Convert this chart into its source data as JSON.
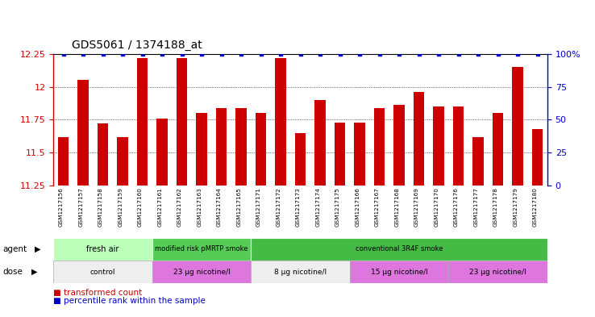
{
  "title": "GDS5061 / 1374188_at",
  "samples": [
    "GSM1217156",
    "GSM1217157",
    "GSM1217158",
    "GSM1217159",
    "GSM1217160",
    "GSM1217161",
    "GSM1217162",
    "GSM1217163",
    "GSM1217164",
    "GSM1217165",
    "GSM1217171",
    "GSM1217172",
    "GSM1217173",
    "GSM1217174",
    "GSM1217175",
    "GSM1217166",
    "GSM1217167",
    "GSM1217168",
    "GSM1217169",
    "GSM1217170",
    "GSM1217176",
    "GSM1217177",
    "GSM1217178",
    "GSM1217179",
    "GSM1217180"
  ],
  "bar_values": [
    11.62,
    12.05,
    11.72,
    11.62,
    12.22,
    11.76,
    12.22,
    11.8,
    11.84,
    11.84,
    11.8,
    12.22,
    11.65,
    11.9,
    11.73,
    11.73,
    11.84,
    11.86,
    11.96,
    11.85,
    11.85,
    11.62,
    11.8,
    12.15,
    11.68
  ],
  "percentile_values": [
    100,
    100,
    100,
    100,
    100,
    100,
    100,
    100,
    100,
    100,
    100,
    100,
    100,
    100,
    100,
    100,
    100,
    100,
    100,
    100,
    100,
    100,
    100,
    100,
    100
  ],
  "bar_color": "#cc0000",
  "percentile_color": "#0000cc",
  "ymin": 11.25,
  "ymax": 12.25,
  "yticks": [
    11.25,
    11.5,
    11.75,
    12.0,
    12.25
  ],
  "ytick_labels": [
    "11.25",
    "11.5",
    "11.75",
    "12",
    "12.25"
  ],
  "right_yticks": [
    0,
    25,
    50,
    75,
    100
  ],
  "right_ytick_labels": [
    "0",
    "25",
    "50",
    "75",
    "100%"
  ],
  "agent_groups": [
    {
      "label": "fresh air",
      "start": 0,
      "end": 4,
      "color": "#bbffbb"
    },
    {
      "label": "modified risk pMRTP smoke",
      "start": 5,
      "end": 9,
      "color": "#55cc55"
    },
    {
      "label": "conventional 3R4F smoke",
      "start": 10,
      "end": 24,
      "color": "#44bb44"
    }
  ],
  "dose_groups": [
    {
      "label": "control",
      "start": 0,
      "end": 4,
      "color": "#eeeeee"
    },
    {
      "label": "23 µg nicotine/l",
      "start": 5,
      "end": 9,
      "color": "#dd77dd"
    },
    {
      "label": "8 µg nicotine/l",
      "start": 10,
      "end": 14,
      "color": "#eeeeee"
    },
    {
      "label": "15 µg nicotine/l",
      "start": 15,
      "end": 19,
      "color": "#dd77dd"
    },
    {
      "label": "23 µg nicotine/l",
      "start": 20,
      "end": 24,
      "color": "#dd77dd"
    }
  ],
  "xtick_bg_color": "#d8d8d8",
  "legend_items": [
    {
      "label": "transformed count",
      "color": "#cc0000"
    },
    {
      "label": "percentile rank within the sample",
      "color": "#0000cc"
    }
  ],
  "background_color": "#ffffff"
}
